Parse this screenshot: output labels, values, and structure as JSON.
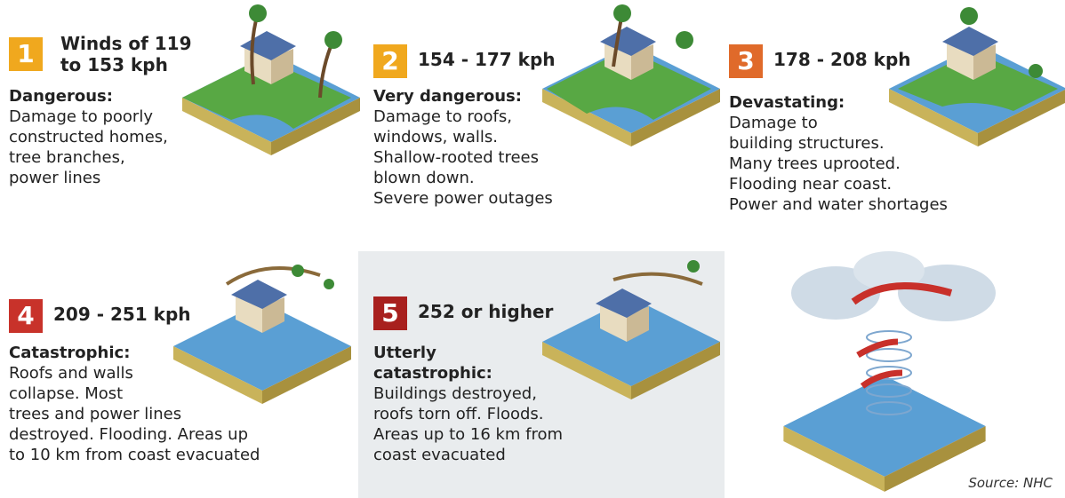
{
  "categories": [
    {
      "number": "1",
      "title": [
        "Winds of 119",
        "to 153 kph"
      ],
      "heading": [
        "Dangerous:"
      ],
      "description": [
        "Damage to poorly",
        "constructed homes,",
        "tree branches,",
        "power lines"
      ]
    },
    {
      "number": "2",
      "title": [
        "154 - 177 kph"
      ],
      "heading": [
        "Very dangerous:"
      ],
      "description": [
        "Damage to roofs,",
        "windows, walls.",
        "Shallow-rooted trees",
        "blown down.",
        "Severe power outages"
      ]
    },
    {
      "number": "3",
      "title": [
        "178 - 208 kph"
      ],
      "heading": [
        "Devastating:"
      ],
      "description": [
        "Damage to",
        "building structures.",
        "Many trees uprooted.",
        "Flooding near coast.",
        "Power and water shortages"
      ]
    },
    {
      "number": "4",
      "title": [
        "209 - 251 kph"
      ],
      "heading": [
        "Catastrophic:"
      ],
      "description": [
        "Roofs and walls",
        "collapse. Most",
        "trees and power lines",
        "destroyed. Flooding. Areas up",
        "to 10 km from coast evacuated"
      ]
    },
    {
      "number": "5",
      "title": [
        "252 or higher"
      ],
      "heading": [
        "Utterly",
        "catastrophic:"
      ],
      "description": [
        "Buildings destroyed,",
        "roofs torn off. Floods.",
        "Areas up to 16 km from",
        "coast evacuated"
      ]
    }
  ],
  "source": "Source: NHC"
}
